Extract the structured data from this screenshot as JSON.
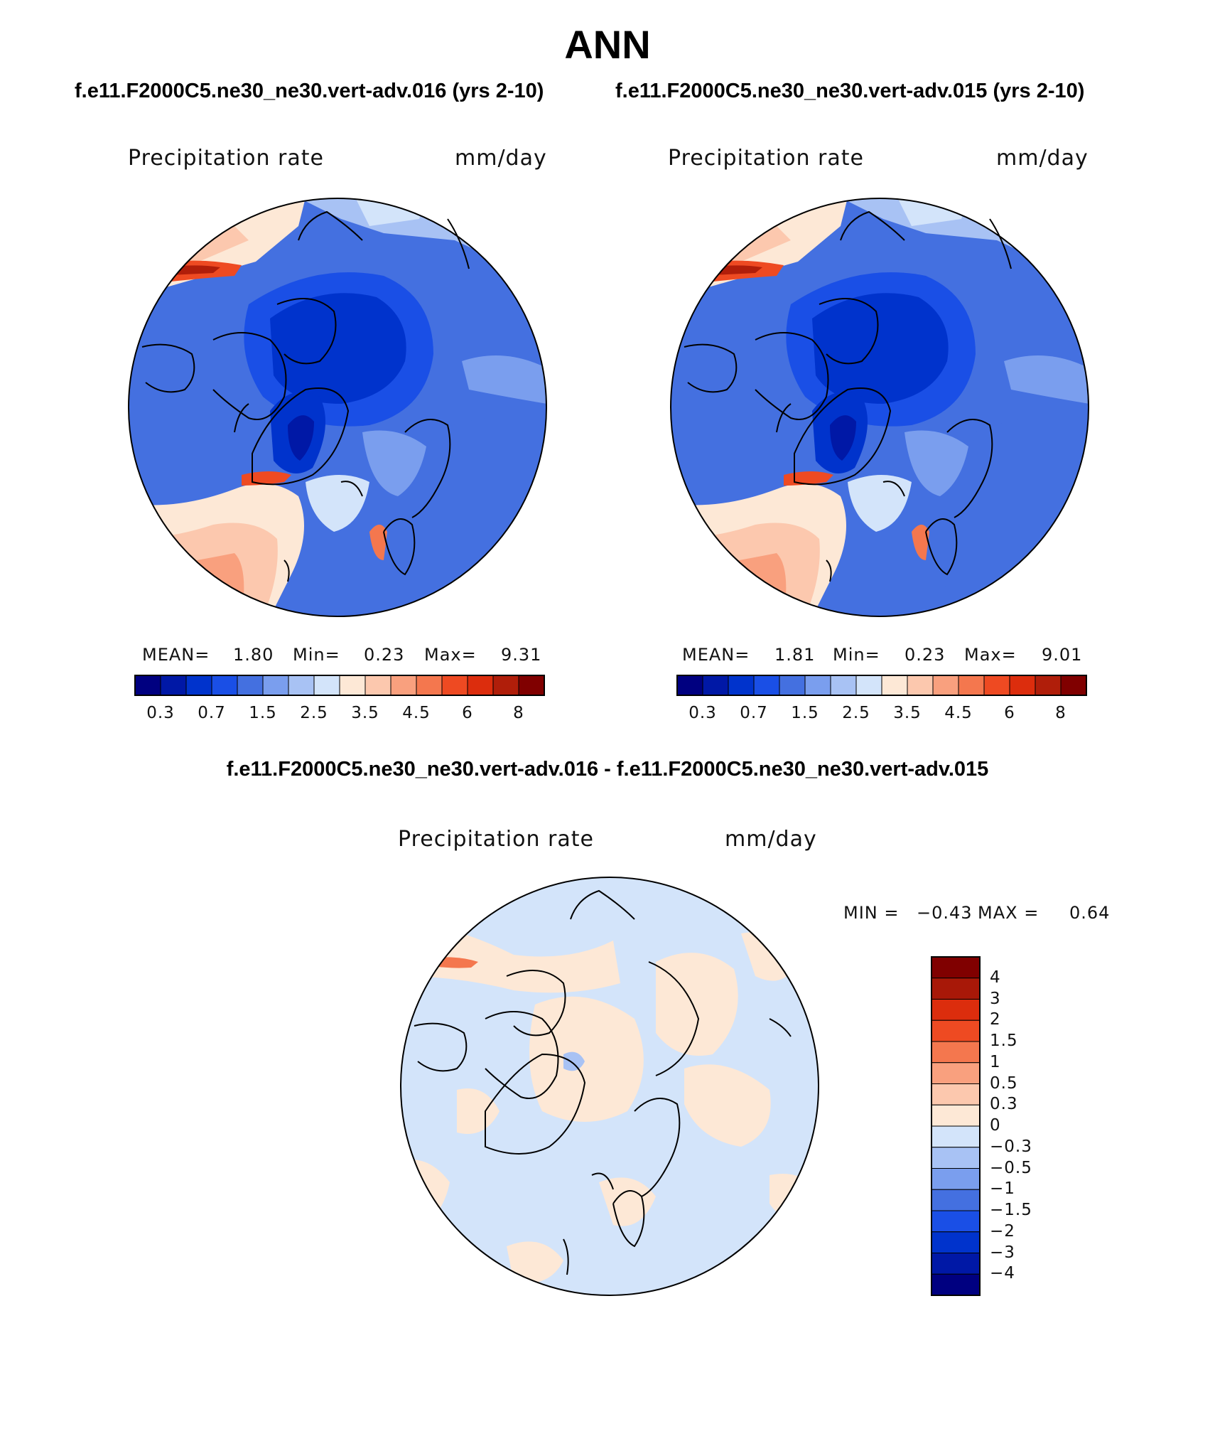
{
  "title": "ANN",
  "panels": [
    {
      "case_title": "f.e11.F2000C5.ne30_ne30.vert-adv.016 (yrs 2-10)",
      "variable": "Precipitation rate",
      "units": "mm/day",
      "stats": {
        "mean_label": "MEAN=",
        "mean": "1.80",
        "min_label": "Min=",
        "min": "0.23",
        "max_label": "Max=",
        "max": "9.31"
      }
    },
    {
      "case_title": "f.e11.F2000C5.ne30_ne30.vert-adv.015 (yrs 2-10)",
      "variable": "Precipitation rate",
      "units": "mm/day",
      "stats": {
        "mean_label": "MEAN=",
        "mean": "1.81",
        "min_label": "Min=",
        "min": "0.23",
        "max_label": "Max=",
        "max": "9.01"
      }
    }
  ],
  "diff_panel": {
    "title": "f.e11.F2000C5.ne30_ne30.vert-adv.016 - f.e11.F2000C5.ne30_ne30.vert-adv.015",
    "variable": "Precipitation rate",
    "units": "mm/day",
    "min_label": "MIN =",
    "min": "−0.43",
    "max_label": "MAX =",
    "max": "0.64"
  },
  "colorbar_main": {
    "colors": [
      "#000080",
      "#0018A6",
      "#0033CC",
      "#1A4FE6",
      "#4470E0",
      "#7A9EEE",
      "#A8C2F4",
      "#D3E4FA",
      "#FDE8D6",
      "#FCC8AE",
      "#F9A07E",
      "#F4774E",
      "#EE4A22",
      "#DC2D0D",
      "#B01E0A",
      "#800000"
    ],
    "tick_labels": [
      "0.3",
      "0.7",
      "1.5",
      "2.5",
      "3.5",
      "4.5",
      "6",
      "8"
    ]
  },
  "colorbar_diff": {
    "colors": [
      "#800000",
      "#A81808",
      "#DC2D0D",
      "#EE4A22",
      "#F4774E",
      "#F9A07E",
      "#FCC8AE",
      "#FDE8D6",
      "#D3E4FA",
      "#A8C2F4",
      "#7A9EEE",
      "#4470E0",
      "#1A4FE6",
      "#0033CC",
      "#0018A6",
      "#000080"
    ],
    "tick_labels": [
      "4",
      "3",
      "2",
      "1.5",
      "1",
      "0.5",
      "0.3",
      "0",
      "−0.3",
      "−0.5",
      "−1",
      "−1.5",
      "−2",
      "−3",
      "−4"
    ]
  }
}
